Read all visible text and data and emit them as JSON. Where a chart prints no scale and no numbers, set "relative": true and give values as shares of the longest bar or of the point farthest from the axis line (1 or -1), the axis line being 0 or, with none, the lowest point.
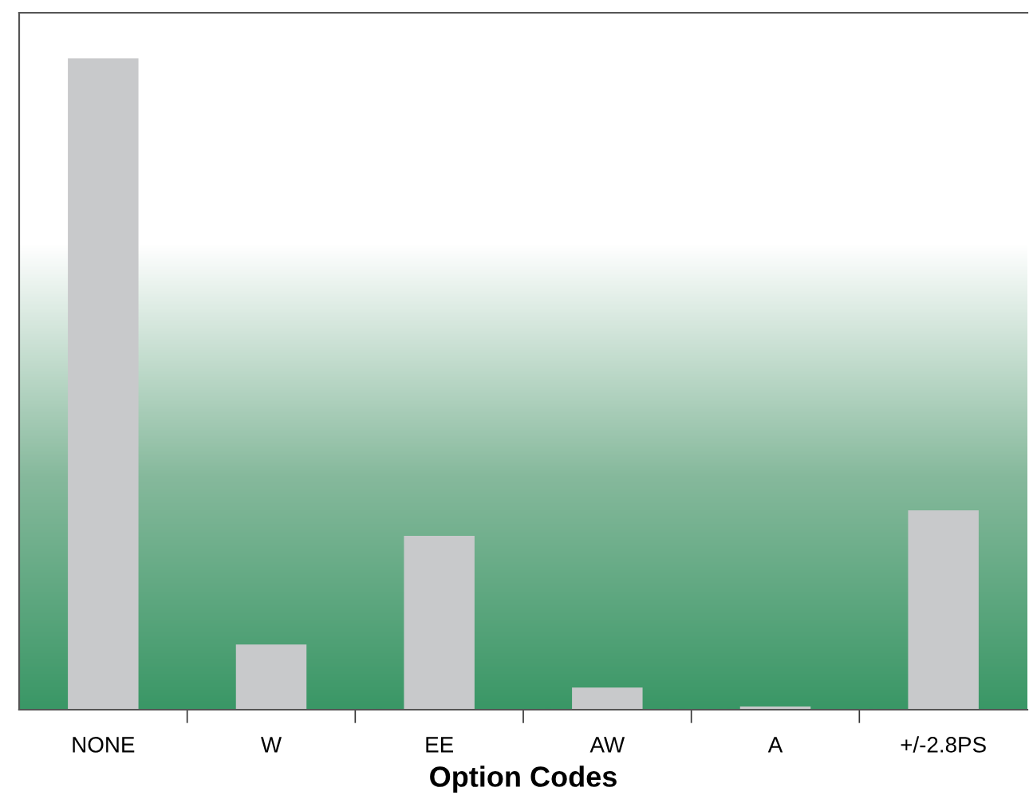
{
  "chart_data": {
    "type": "bar",
    "xlabel": "Option Codes",
    "relative": true,
    "categories": [
      "NONE",
      "W",
      "EE",
      "AW",
      "A",
      "+/-2.8PS"
    ],
    "values": [
      1,
      0.1,
      0.267,
      0.034,
      0.005,
      0.306
    ],
    "color": "#c8c9cb",
    "grid": false,
    "legend": false
  }
}
